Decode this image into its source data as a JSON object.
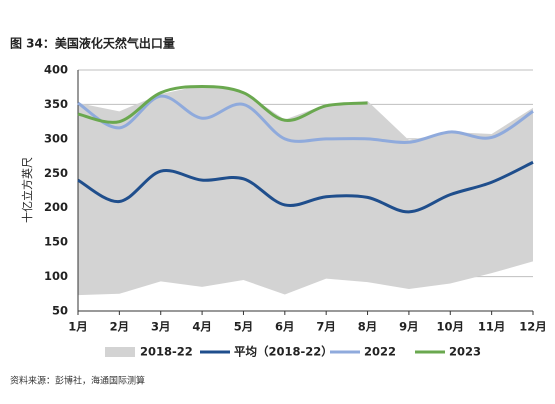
{
  "chart_data": {
    "type": "line",
    "title": "图 34：美国液化天然气出口量",
    "ylabel": "十亿立方英尺",
    "source": "资料来源：彭博社，海通国际测算",
    "categories": [
      "1月",
      "2月",
      "3月",
      "4月",
      "5月",
      "6月",
      "7月",
      "8月",
      "9月",
      "10月",
      "11月",
      "12月"
    ],
    "ylim": [
      50,
      400
    ],
    "yticks": [
      50,
      100,
      150,
      200,
      250,
      300,
      350,
      400
    ],
    "grid": true,
    "band": {
      "name": "2018-22",
      "color": "#d3d3d3",
      "upper": [
        352,
        340,
        365,
        378,
        368,
        328,
        350,
        355,
        298,
        310,
        307,
        345
      ],
      "lower": [
        73,
        75,
        93,
        85,
        95,
        74,
        97,
        92,
        82,
        90,
        105,
        122
      ]
    },
    "series": [
      {
        "name": "平均（2018-22）",
        "color": "#1f4e8c",
        "values": [
          240,
          209,
          253,
          240,
          242,
          204,
          216,
          215,
          194,
          219,
          237,
          266
        ]
      },
      {
        "name": "2022",
        "color": "#8faadc",
        "values": [
          352,
          316,
          362,
          330,
          350,
          300,
          300,
          300,
          295,
          310,
          302,
          340
        ]
      },
      {
        "name": "2023",
        "color": "#6aa84f",
        "values": [
          336,
          325,
          367,
          376,
          367,
          327,
          348,
          352,
          null,
          null,
          null,
          null
        ]
      }
    ]
  }
}
